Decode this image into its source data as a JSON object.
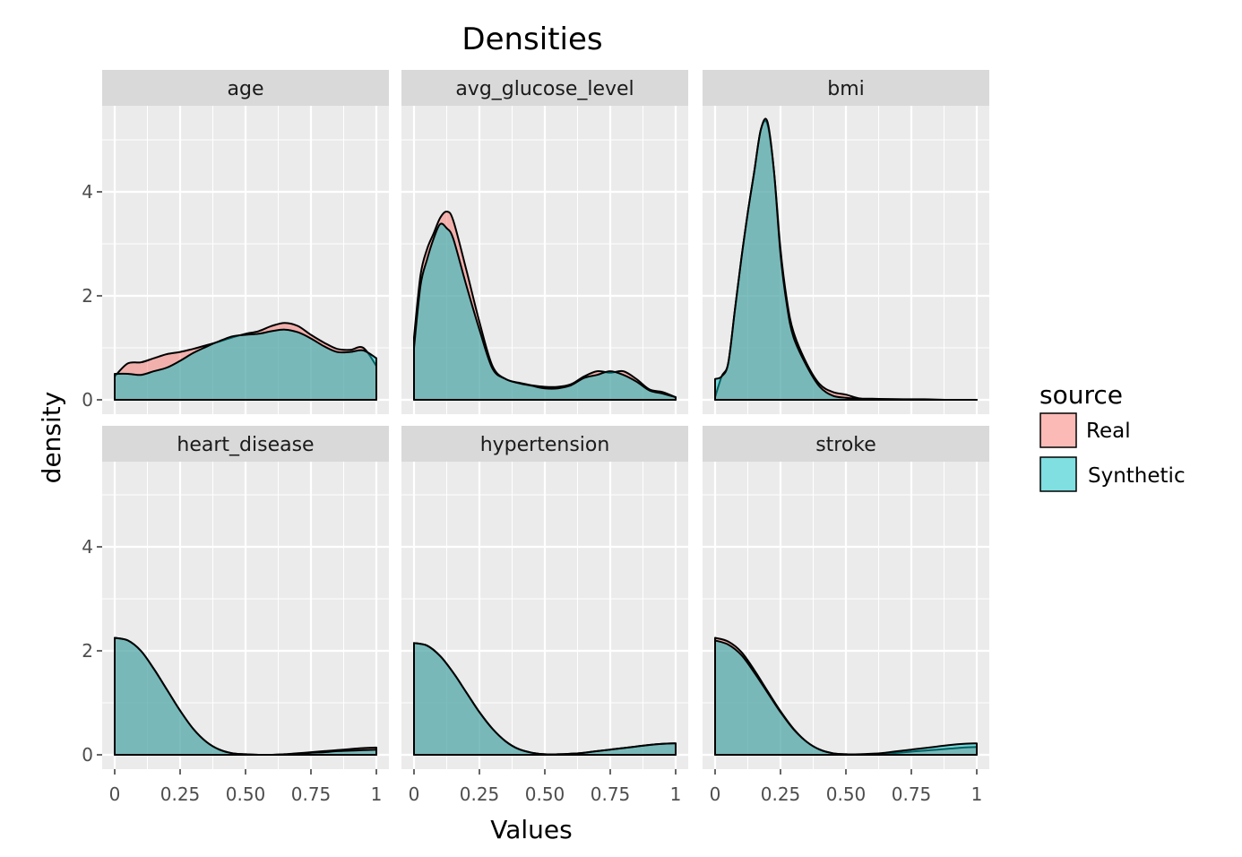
{
  "chart_data": {
    "type": "area",
    "title": "Densities",
    "xlabel": "Values",
    "ylabel": "density",
    "xlim": [
      0,
      1
    ],
    "ylim": [
      -0.27,
      5.65
    ],
    "x_ticks": [
      "0",
      "0.25",
      "0.50",
      "0.75",
      "1"
    ],
    "x_tick_values": [
      0,
      0.25,
      0.5,
      0.75,
      1
    ],
    "y_ticks": [
      "0",
      "2",
      "4"
    ],
    "y_tick_values": [
      0,
      2,
      4
    ],
    "grid": true,
    "legend": {
      "title": "source",
      "placement": "right",
      "entries": [
        "Real",
        "Synthetic"
      ]
    },
    "colors": {
      "Real": "#F8766D",
      "Synthetic": "#00BFC4",
      "panel_bg": "#EBEBEB",
      "strip_bg": "#D9D9D9"
    },
    "fill_alpha": 0.5,
    "facets": [
      {
        "name": "age",
        "x": [
          0,
          0.05,
          0.1,
          0.15,
          0.2,
          0.25,
          0.3,
          0.35,
          0.4,
          0.45,
          0.5,
          0.55,
          0.6,
          0.65,
          0.7,
          0.75,
          0.8,
          0.85,
          0.9,
          0.95,
          1
        ],
        "series": [
          {
            "name": "Real",
            "values": [
              0.45,
              0.7,
              0.72,
              0.8,
              0.88,
              0.92,
              0.98,
              1.05,
              1.12,
              1.2,
              1.27,
              1.32,
              1.42,
              1.48,
              1.42,
              1.25,
              1.1,
              0.98,
              0.96,
              1.0,
              0.65
            ]
          },
          {
            "name": "Synthetic",
            "values": [
              0.5,
              0.5,
              0.48,
              0.55,
              0.62,
              0.75,
              0.9,
              1.02,
              1.13,
              1.22,
              1.25,
              1.27,
              1.32,
              1.35,
              1.3,
              1.18,
              1.03,
              0.92,
              0.92,
              0.95,
              0.8
            ]
          }
        ]
      },
      {
        "name": "avg_glucose_level",
        "x": [
          0,
          0.025,
          0.05,
          0.075,
          0.1,
          0.125,
          0.15,
          0.2,
          0.25,
          0.3,
          0.35,
          0.4,
          0.45,
          0.5,
          0.55,
          0.6,
          0.65,
          0.7,
          0.75,
          0.8,
          0.85,
          0.9,
          0.95,
          1
        ],
        "series": [
          {
            "name": "Real",
            "values": [
              1.2,
              2.4,
              2.9,
              3.2,
              3.5,
              3.62,
              3.45,
              2.5,
              1.5,
              0.65,
              0.4,
              0.33,
              0.28,
              0.25,
              0.25,
              0.3,
              0.45,
              0.55,
              0.52,
              0.55,
              0.4,
              0.2,
              0.15,
              0.05
            ]
          },
          {
            "name": "Synthetic",
            "values": [
              1.0,
              2.2,
              2.7,
              3.1,
              3.38,
              3.3,
              3.1,
              2.2,
              1.35,
              0.6,
              0.4,
              0.32,
              0.27,
              0.22,
              0.22,
              0.28,
              0.42,
              0.48,
              0.55,
              0.48,
              0.35,
              0.18,
              0.12,
              0.05
            ]
          }
        ]
      },
      {
        "name": "bmi",
        "x": [
          0,
          0.025,
          0.05,
          0.075,
          0.1,
          0.125,
          0.15,
          0.175,
          0.2,
          0.225,
          0.25,
          0.275,
          0.3,
          0.35,
          0.4,
          0.45,
          0.5,
          0.55,
          0.6,
          0.7,
          0.8,
          0.9,
          1
        ],
        "series": [
          {
            "name": "Real",
            "values": [
              0.05,
              0.45,
              0.7,
              1.7,
              2.7,
              3.6,
              4.4,
              5.2,
              5.3,
              4.4,
              2.9,
              1.9,
              1.3,
              0.7,
              0.3,
              0.15,
              0.1,
              0.03,
              0.02,
              0.01,
              0.01,
              0,
              0
            ]
          },
          {
            "name": "Synthetic",
            "values": [
              0.4,
              0.45,
              0.7,
              1.7,
              2.7,
              3.6,
              4.4,
              5.2,
              5.35,
              4.4,
              2.8,
              1.8,
              1.2,
              0.65,
              0.25,
              0.08,
              0.04,
              0.02,
              0.01,
              0.01,
              0,
              0,
              0
            ]
          }
        ]
      },
      {
        "name": "heart_disease",
        "x": [
          0,
          0.05,
          0.1,
          0.15,
          0.2,
          0.25,
          0.3,
          0.35,
          0.4,
          0.45,
          0.5,
          0.55,
          0.6,
          0.65,
          0.7,
          0.75,
          0.8,
          0.85,
          0.9,
          0.95,
          1
        ],
        "series": [
          {
            "name": "Real",
            "values": [
              2.25,
              2.2,
              2.0,
              1.65,
              1.25,
              0.85,
              0.5,
              0.25,
              0.1,
              0.03,
              0.01,
              0,
              0,
              0.01,
              0.03,
              0.05,
              0.07,
              0.09,
              0.11,
              0.13,
              0.14
            ]
          },
          {
            "name": "Synthetic",
            "values": [
              2.25,
              2.2,
              2.0,
              1.65,
              1.25,
              0.85,
              0.5,
              0.25,
              0.1,
              0.03,
              0.01,
              0,
              0,
              0.01,
              0.02,
              0.04,
              0.05,
              0.07,
              0.08,
              0.09,
              0.1
            ]
          }
        ]
      },
      {
        "name": "hypertension",
        "x": [
          0,
          0.05,
          0.1,
          0.15,
          0.2,
          0.25,
          0.3,
          0.35,
          0.4,
          0.45,
          0.5,
          0.55,
          0.6,
          0.65,
          0.7,
          0.75,
          0.8,
          0.85,
          0.9,
          0.95,
          1
        ],
        "series": [
          {
            "name": "Real",
            "values": [
              2.15,
              2.1,
              1.9,
              1.58,
              1.2,
              0.82,
              0.5,
              0.26,
              0.11,
              0.04,
              0.01,
              0.01,
              0.02,
              0.04,
              0.07,
              0.1,
              0.13,
              0.16,
              0.19,
              0.21,
              0.22
            ]
          },
          {
            "name": "Synthetic",
            "values": [
              2.15,
              2.1,
              1.9,
              1.58,
              1.2,
              0.82,
              0.5,
              0.26,
              0.11,
              0.04,
              0.01,
              0.01,
              0.02,
              0.04,
              0.07,
              0.1,
              0.13,
              0.16,
              0.19,
              0.21,
              0.22
            ]
          }
        ]
      },
      {
        "name": "stroke",
        "x": [
          0,
          0.05,
          0.1,
          0.15,
          0.2,
          0.25,
          0.3,
          0.35,
          0.4,
          0.45,
          0.5,
          0.55,
          0.6,
          0.65,
          0.7,
          0.75,
          0.8,
          0.85,
          0.9,
          0.95,
          1
        ],
        "series": [
          {
            "name": "Real",
            "values": [
              2.25,
              2.18,
              1.98,
              1.63,
              1.23,
              0.84,
              0.5,
              0.25,
              0.1,
              0.03,
              0.01,
              0,
              0.01,
              0.02,
              0.04,
              0.06,
              0.08,
              0.1,
              0.12,
              0.14,
              0.15
            ]
          },
          {
            "name": "Synthetic",
            "values": [
              2.2,
              2.12,
              1.92,
              1.58,
              1.2,
              0.82,
              0.49,
              0.25,
              0.1,
              0.03,
              0.01,
              0.01,
              0.02,
              0.04,
              0.07,
              0.1,
              0.13,
              0.16,
              0.19,
              0.21,
              0.22
            ]
          }
        ]
      }
    ]
  }
}
